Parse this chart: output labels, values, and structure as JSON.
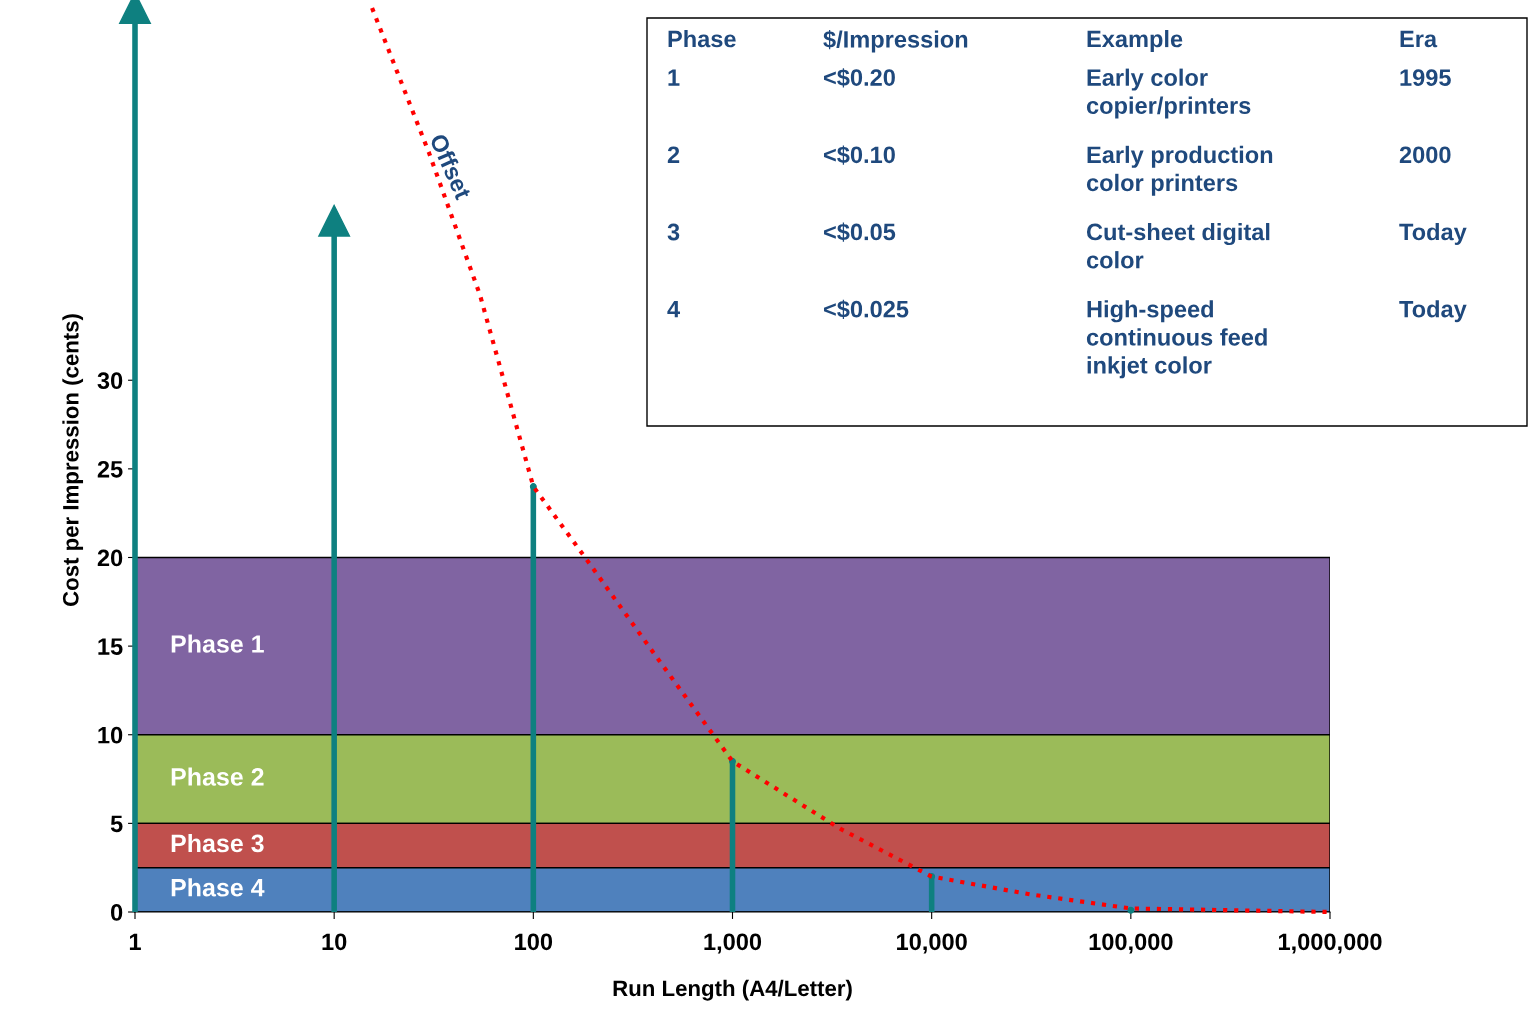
{
  "chart_data": {
    "type": "lollipop",
    "xlabel": "Run Length (A4/Letter)",
    "ylabel": "Cost per Impression (cents)",
    "log": "x",
    "xlim": [
      1,
      1000000
    ],
    "xticks": [
      {
        "value": 1,
        "label": "1"
      },
      {
        "value": 10,
        "label": "10"
      },
      {
        "value": 100,
        "label": "100"
      },
      {
        "value": 1000,
        "label": "1,000"
      },
      {
        "value": 10000,
        "label": "10,000"
      },
      {
        "value": 100000,
        "label": "100,000"
      },
      {
        "value": 1000000,
        "label": "1,000,000"
      }
    ],
    "ylim": [
      0,
      51
    ],
    "yticks": [
      0,
      5,
      10,
      15,
      20,
      25,
      30
    ],
    "grid": false,
    "bands": [
      {
        "axis": "y",
        "from": 10,
        "to": 20,
        "label": "Phase 1",
        "color": "#8064a2"
      },
      {
        "axis": "y",
        "from": 5,
        "to": 10,
        "label": "Phase 2",
        "color": "#9bbb59"
      },
      {
        "axis": "y",
        "from": 2.5,
        "to": 5,
        "label": "Phase 3",
        "color": "#c0504d"
      },
      {
        "axis": "y",
        "from": 0,
        "to": 2.5,
        "label": "Phase 4",
        "color": "#4f81bd"
      }
    ],
    "series": [
      {
        "color": "#0e8080",
        "x": [
          1,
          10,
          100,
          1000,
          10000,
          100000
        ],
        "values": [
          51,
          39,
          24,
          8.5,
          2,
          0.1
        ]
      },
      {
        "type": "line",
        "name": "Offset",
        "color": "#ff0000",
        "line_style": "dotted",
        "x": [
          15.5,
          30,
          54,
          100,
          182,
          385,
          1000,
          3470,
          10000,
          31000,
          100000,
          1000000
        ],
        "values": [
          51,
          42.8,
          34.8,
          24,
          20,
          14.9,
          8.5,
          4.7,
          2,
          1,
          0.2,
          0
        ]
      }
    ],
    "annotations": [
      "Phase",
      "$/Impression",
      "Example",
      "Era",
      "1",
      "<$0.20",
      "Early color\ncopier/printers",
      "1995",
      "2",
      "<$0.10",
      "Early production\ncolor printers",
      "2000",
      "3",
      "<$0.05",
      "Cut-sheet digital\ncolor",
      "Today",
      "4",
      "<$0.025",
      "High-speed\ncontinuous feed\ninkjet color",
      "Today"
    ]
  }
}
